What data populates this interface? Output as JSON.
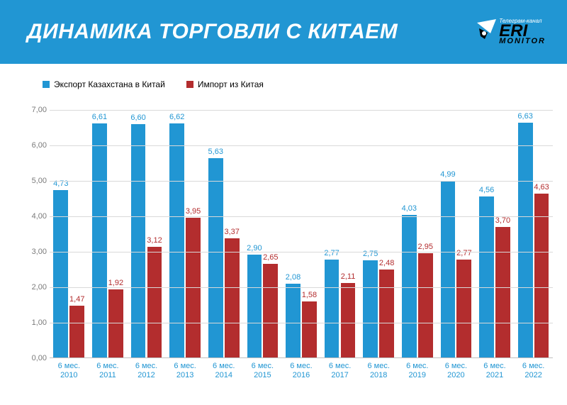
{
  "header": {
    "title": "ДИНАМИКА ТОРГОВЛИ С КИТАЕМ",
    "logo_top": "Телеграм-канал",
    "logo_main": "ERI",
    "logo_sub": "MONITOR"
  },
  "chart": {
    "type": "bar",
    "background_color": "#ffffff",
    "header_color": "#2196d3",
    "grid_color": "#d9d9d9",
    "axis_color": "#bfbfbf",
    "title_fontsize": 30,
    "label_fontsize": 11,
    "ylim": [
      0,
      7
    ],
    "ytick_step": 1,
    "yticks": [
      "0,00",
      "1,00",
      "2,00",
      "3,00",
      "4,00",
      "5,00",
      "6,00",
      "7,00"
    ],
    "legend": [
      {
        "label": "Экспорт Казахстана в Китай",
        "color": "#2196d3"
      },
      {
        "label": "Импорт из Китая",
        "color": "#b32d2e"
      }
    ],
    "categories": [
      {
        "line1": "6 мес.",
        "line2": "2010"
      },
      {
        "line1": "6 мес.",
        "line2": "2011"
      },
      {
        "line1": "6 мес.",
        "line2": "2012"
      },
      {
        "line1": "6 мес.",
        "line2": "2013"
      },
      {
        "line1": "6 мес.",
        "line2": "2014"
      },
      {
        "line1": "6 мес.",
        "line2": "2015"
      },
      {
        "line1": "6 мес.",
        "line2": "2016"
      },
      {
        "line1": "6 мес.",
        "line2": "2017"
      },
      {
        "line1": "6 мес.",
        "line2": "2018"
      },
      {
        "line1": "6 мес.",
        "line2": "2019"
      },
      {
        "line1": "6 мес.",
        "line2": "2020"
      },
      {
        "line1": "6 мес.",
        "line2": "2021"
      },
      {
        "line1": "6 мес.",
        "line2": "2022"
      }
    ],
    "series": {
      "export": {
        "color": "#2196d3",
        "label_color": "#2196d3",
        "values": [
          4.73,
          6.61,
          6.6,
          6.62,
          5.63,
          2.9,
          2.08,
          2.77,
          2.75,
          4.03,
          4.99,
          4.56,
          6.63
        ],
        "labels": [
          "4,73",
          "6,61",
          "6,60",
          "6,62",
          "5,63",
          "2,90",
          "2,08",
          "2,77",
          "2,75",
          "4,03",
          "4,99",
          "4,56",
          "6,63"
        ]
      },
      "import": {
        "color": "#b32d2e",
        "label_color": "#b32d2e",
        "values": [
          1.47,
          1.92,
          3.12,
          3.95,
          3.37,
          2.65,
          1.58,
          2.11,
          2.48,
          2.95,
          2.77,
          3.7,
          4.63
        ],
        "labels": [
          "1,47",
          "1,92",
          "3,12",
          "3,95",
          "3,37",
          "2,65",
          "1,58",
          "2,11",
          "2,48",
          "2,95",
          "2,77",
          "3,70",
          "4,63"
        ]
      }
    }
  }
}
